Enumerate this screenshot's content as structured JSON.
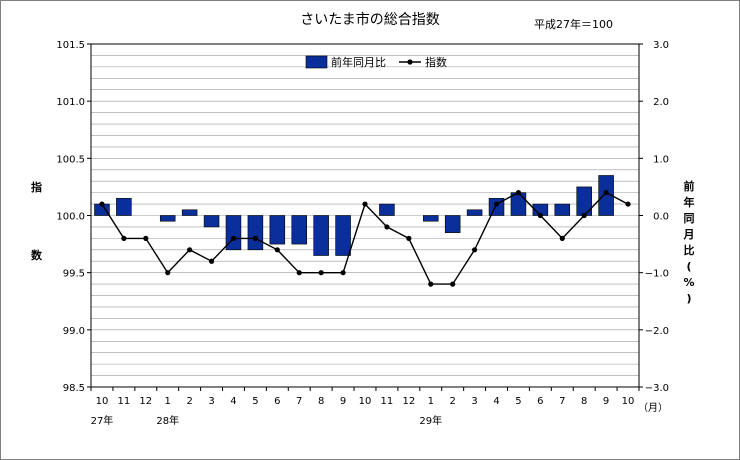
{
  "chart_data": {
    "type": "bar+line",
    "title": "さいたま市の総合指数",
    "note": "平成27年＝100",
    "y_left": {
      "label_top": "指",
      "label_bottom": "数",
      "min": 98.5,
      "max": 101.5,
      "step": 0.5,
      "ticks": [
        "101.5",
        "101.0",
        "100.5",
        "100.0",
        "99.5",
        "99.0",
        "98.5"
      ]
    },
    "y_right": {
      "label": "前年同月比(%)",
      "min": -3.0,
      "max": 3.0,
      "step": 1.0,
      "ticks": [
        "3.0",
        "2.0",
        "1.0",
        "0.0",
        "−1.0",
        "−2.0",
        "−3.0"
      ]
    },
    "x": [
      "10",
      "11",
      "12",
      "1",
      "2",
      "3",
      "4",
      "5",
      "6",
      "7",
      "8",
      "9",
      "10",
      "11",
      "12",
      "1",
      "2",
      "3",
      "4",
      "5",
      "6",
      "7",
      "8",
      "9",
      "10"
    ],
    "x_unit": "（月）",
    "year_labels": [
      {
        "index": 0,
        "text": "27年"
      },
      {
        "index": 3,
        "text": "28年"
      },
      {
        "index": 15,
        "text": "29年"
      }
    ],
    "series": [
      {
        "name": "前年同月比",
        "kind": "bar",
        "axis": "right",
        "color": "#0a2f9a",
        "values": [
          0.2,
          0.3,
          null,
          -0.1,
          0.1,
          -0.2,
          -0.6,
          -0.6,
          -0.5,
          -0.5,
          -0.7,
          -0.7,
          null,
          0.2,
          null,
          -0.1,
          -0.3,
          0.1,
          0.3,
          0.4,
          0.2,
          0.2,
          0.5,
          0.7,
          null
        ]
      },
      {
        "name": "指数",
        "kind": "line",
        "axis": "left",
        "color": "#000000",
        "values": [
          100.1,
          99.8,
          99.8,
          99.5,
          99.7,
          99.6,
          99.8,
          99.8,
          99.7,
          99.5,
          99.5,
          99.5,
          100.1,
          99.9,
          99.8,
          99.4,
          99.4,
          99.7,
          100.1,
          100.2,
          100.0,
          99.8,
          100.0,
          100.2,
          100.1
        ]
      }
    ]
  }
}
